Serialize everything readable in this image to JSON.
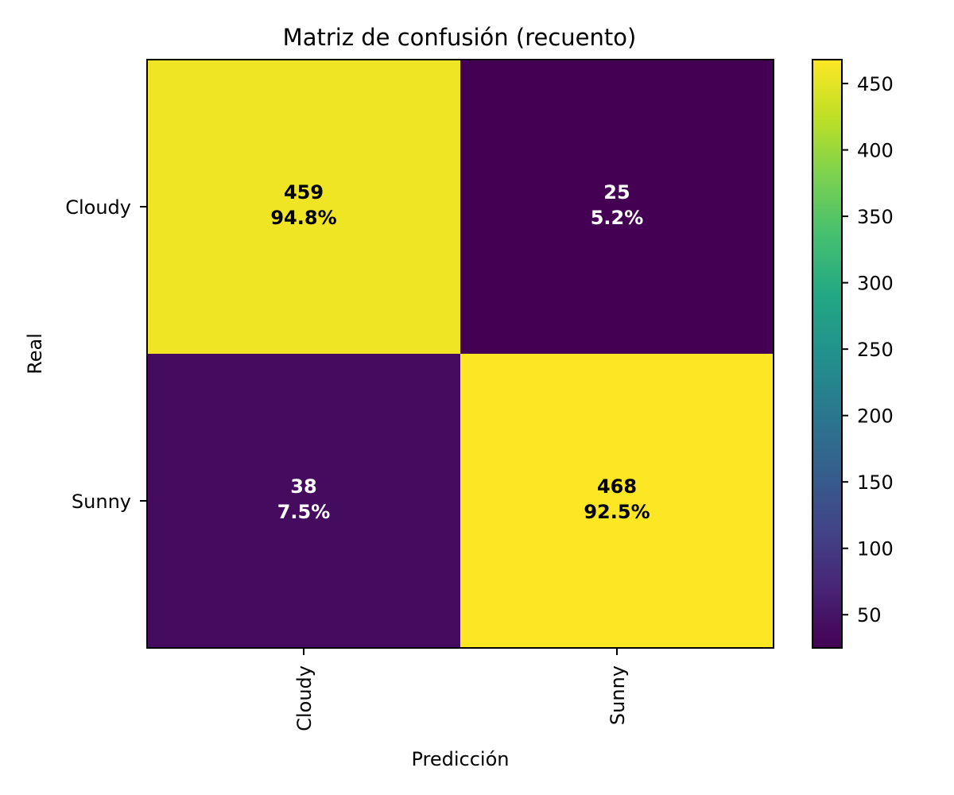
{
  "chart_data": {
    "type": "heatmap",
    "title": "Matriz de confusión (recuento)",
    "xlabel": "Predicción",
    "ylabel": "Real",
    "x_categories": [
      "Cloudy",
      "Sunny"
    ],
    "y_categories": [
      "Cloudy",
      "Sunny"
    ],
    "values": [
      [
        459,
        25
      ],
      [
        38,
        468
      ]
    ],
    "percentages": [
      [
        "94.8%",
        "5.2%"
      ],
      [
        "7.5%",
        "92.5%"
      ]
    ],
    "colormap": "viridis",
    "colorbar": {
      "range": [
        25,
        468
      ],
      "ticks": [
        50,
        100,
        150,
        200,
        250,
        300,
        350,
        400,
        450
      ]
    },
    "text_colors": {
      "on_dark": "#ffffff",
      "on_light": "#000000"
    }
  }
}
